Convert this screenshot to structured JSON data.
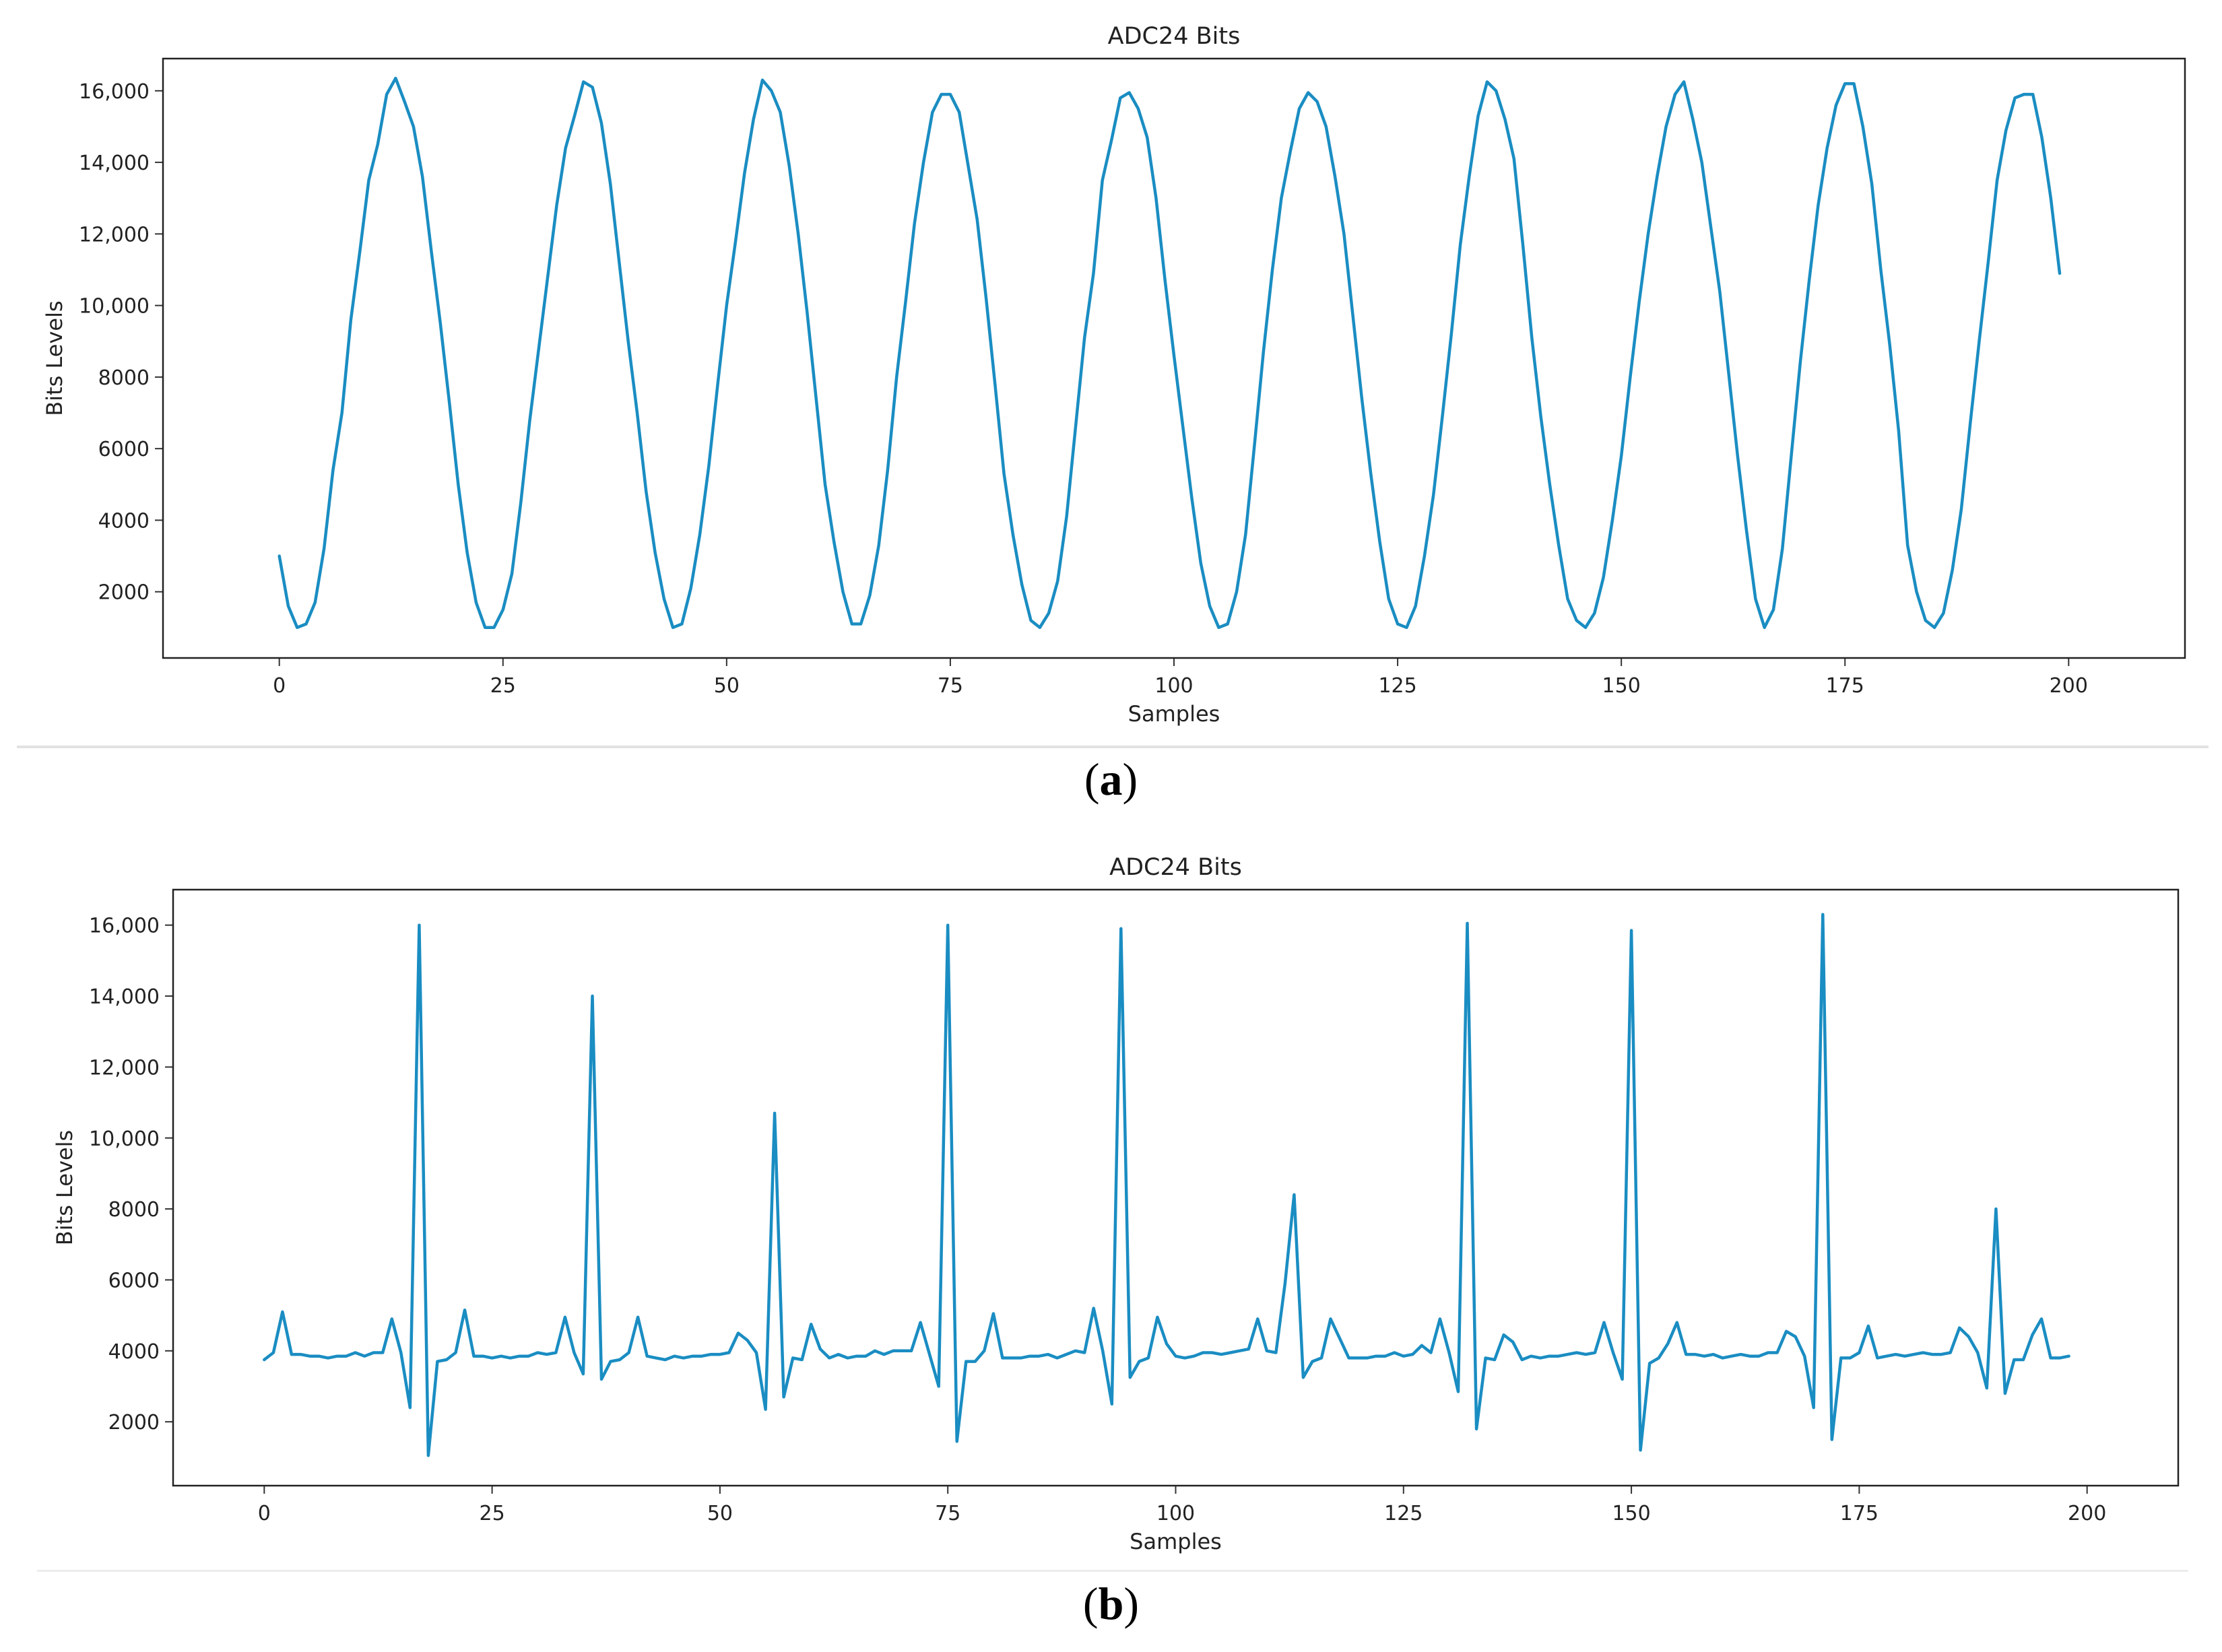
{
  "figure": {
    "captions": [
      {
        "open": "(",
        "letter": "a",
        "close": ")"
      },
      {
        "open": "(",
        "letter": "b",
        "close": ")"
      }
    ]
  },
  "chart_data": [
    {
      "type": "line",
      "title": "ADC24 Bits",
      "xlabel": "Samples",
      "ylabel": "Bits Levels",
      "xlim": [
        -13,
        213
      ],
      "ylim": [
        150,
        16900
      ],
      "xticks": [
        0,
        25,
        50,
        75,
        100,
        125,
        150,
        175,
        200
      ],
      "xtick_labels": [
        "0",
        "25",
        "50",
        "75",
        "100",
        "125",
        "150",
        "175",
        "200"
      ],
      "yticks": [
        2000,
        4000,
        6000,
        8000,
        10000,
        12000,
        14000,
        16000
      ],
      "ytick_labels": [
        "2000",
        "4000",
        "6000",
        "8000",
        "10,000",
        "12,000",
        "14,000",
        "16,000"
      ],
      "grid": false,
      "color": "#1a8dc2",
      "series": [
        {
          "x_start": 0,
          "x_step": 1,
          "values": [
            3000,
            1600,
            1000,
            1100,
            1700,
            3200,
            5400,
            7000,
            9600,
            11500,
            13500,
            14500,
            15900,
            16350,
            15700,
            15000,
            13600,
            11500,
            9500,
            7300,
            5000,
            3100,
            1700,
            1000,
            1000,
            1500,
            2500,
            4500,
            6800,
            8800,
            10800,
            12800,
            14400,
            15300,
            16250,
            16100,
            15100,
            13400,
            11200,
            9000,
            7000,
            4800,
            3100,
            1800,
            1000,
            1100,
            2100,
            3600,
            5500,
            7800,
            10000,
            11800,
            13700,
            15200,
            16300,
            16000,
            15400,
            13900,
            12000,
            9800,
            7400,
            5000,
            3400,
            2000,
            1100,
            1100,
            1900,
            3300,
            5400,
            8000,
            10100,
            12300,
            14000,
            15400,
            15900,
            15900,
            15400,
            13900,
            12400,
            10200,
            7800,
            5300,
            3600,
            2200,
            1200,
            1000,
            1400,
            2300,
            4100,
            6600,
            9100,
            10900,
            13500,
            14600,
            15800,
            15950,
            15500,
            14700,
            13000,
            10700,
            8600,
            6600,
            4600,
            2800,
            1600,
            1000,
            1100,
            2000,
            3600,
            6100,
            8700,
            11000,
            13000,
            14300,
            15500,
            15950,
            15700,
            15000,
            13600,
            12000,
            9700,
            7400,
            5300,
            3400,
            1800,
            1100,
            1000,
            1600,
            3000,
            4700,
            6900,
            9200,
            11700,
            13600,
            15300,
            16250,
            16000,
            15200,
            14100,
            11700,
            9100,
            6900,
            5000,
            3300,
            1800,
            1200,
            1000,
            1400,
            2400,
            4000,
            5800,
            8000,
            10100,
            12000,
            13600,
            15000,
            15900,
            16250,
            15200,
            14000,
            12200,
            10400,
            8100,
            5800,
            3700,
            1800,
            1000,
            1500,
            3200,
            5800,
            8400,
            10700,
            12800,
            14400,
            15600,
            16200,
            16200,
            15000,
            13400,
            11000,
            8900,
            6500,
            3300,
            2000,
            1200,
            1000,
            1400,
            2600,
            4300,
            6700,
            9000,
            11200,
            13500,
            14900,
            15800,
            15900,
            15900,
            14700,
            13000,
            10900
          ]
        }
      ]
    },
    {
      "type": "line",
      "title": "ADC24 Bits",
      "xlabel": "Samples",
      "ylabel": "Bits Levels",
      "xlim": [
        -10,
        210
      ],
      "ylim": [
        200,
        17000
      ],
      "xticks": [
        0,
        25,
        50,
        75,
        100,
        125,
        150,
        175,
        200
      ],
      "xtick_labels": [
        "0",
        "25",
        "50",
        "75",
        "100",
        "125",
        "150",
        "175",
        "200"
      ],
      "yticks": [
        2000,
        4000,
        6000,
        8000,
        10000,
        12000,
        14000,
        16000
      ],
      "ytick_labels": [
        "2000",
        "4000",
        "6000",
        "8000",
        "10,000",
        "12,000",
        "14,000",
        "16,000"
      ],
      "grid": false,
      "color": "#1a8dc2",
      "series": [
        {
          "x_start": 0,
          "x_step": 1,
          "values": [
            3750,
            3950,
            5100,
            3900,
            3900,
            3850,
            3850,
            3800,
            3850,
            3850,
            3950,
            3850,
            3950,
            3950,
            4900,
            3950,
            2400,
            16000,
            1050,
            3700,
            3750,
            3950,
            5150,
            3850,
            3850,
            3800,
            3850,
            3800,
            3850,
            3850,
            3950,
            3900,
            3950,
            4950,
            3950,
            3350,
            14000,
            3200,
            3700,
            3750,
            3950,
            4950,
            3850,
            3800,
            3750,
            3850,
            3800,
            3850,
            3850,
            3900,
            3900,
            3950,
            4500,
            4300,
            3950,
            2350,
            10700,
            2700,
            3800,
            3750,
            4750,
            4050,
            3800,
            3900,
            3800,
            3850,
            3850,
            4000,
            3900,
            4000,
            4000,
            4000,
            4800,
            3900,
            3000,
            16000,
            1450,
            3700,
            3700,
            4000,
            5050,
            3800,
            3800,
            3800,
            3850,
            3850,
            3900,
            3800,
            3900,
            4000,
            3950,
            5200,
            4000,
            2500,
            15900,
            3250,
            3700,
            3800,
            4950,
            4200,
            3850,
            3800,
            3850,
            3950,
            3950,
            3900,
            3950,
            4000,
            4050,
            4900,
            4000,
            3950,
            5900,
            8400,
            3250,
            3700,
            3800,
            4900,
            4350,
            3800,
            3800,
            3800,
            3850,
            3850,
            3950,
            3850,
            3900,
            4150,
            3950,
            4900,
            3950,
            2850,
            16050,
            1800,
            3800,
            3750,
            4450,
            4250,
            3750,
            3850,
            3800,
            3850,
            3850,
            3900,
            3950,
            3900,
            3950,
            4800,
            3950,
            3200,
            15850,
            1200,
            3650,
            3800,
            4200,
            4800,
            3900,
            3900,
            3850,
            3900,
            3800,
            3850,
            3900,
            3850,
            3850,
            3950,
            3950,
            4550,
            4400,
            3850,
            2400,
            16300,
            1500,
            3800,
            3800,
            3950,
            4700,
            3800,
            3850,
            3900,
            3850,
            3900,
            3950,
            3900,
            3900,
            3950,
            4650,
            4400,
            3950,
            2950,
            8000,
            2800,
            3750,
            3750,
            4450,
            4900,
            3800,
            3800,
            3850
          ]
        }
      ]
    }
  ]
}
